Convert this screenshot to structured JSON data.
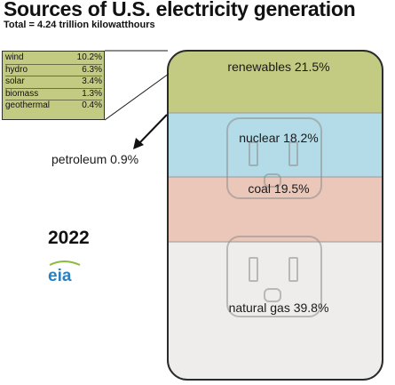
{
  "header": {
    "title": "Sources of U.S. electricity generation",
    "subtitle": "Total = 4.24 trillion kilowatthours"
  },
  "year": "2022",
  "logo_text": "eia",
  "colors": {
    "renewables": "#c3ca82",
    "nuclear": "#b3dbe8",
    "coal": "#ebc7b9",
    "natural_gas": "#efedeb",
    "frame": "#2b2b2b",
    "eia_blue": "#2a7fbf",
    "eia_green": "#8dbb3c"
  },
  "chart_data": {
    "type": "bar",
    "orientation": "stacked-vertical",
    "unit": "%",
    "categories": [
      "natural gas",
      "coal",
      "nuclear",
      "renewables",
      "petroleum"
    ],
    "values": [
      39.8,
      19.5,
      18.2,
      21.5,
      0.9
    ],
    "labels": [
      "natural gas 39.8%",
      "coal 19.5%",
      "nuclear 18.2%",
      "renewables 21.5%",
      "petroleum 0.9%"
    ],
    "renewables_breakdown": {
      "categories": [
        "wind",
        "hydro",
        "solar",
        "biomass",
        "geothermal"
      ],
      "values": [
        10.2,
        6.3,
        3.4,
        1.3,
        0.4
      ],
      "labels": [
        "10.2%",
        "6.3%",
        "3.4%",
        "1.3%",
        "0.4%"
      ]
    }
  }
}
